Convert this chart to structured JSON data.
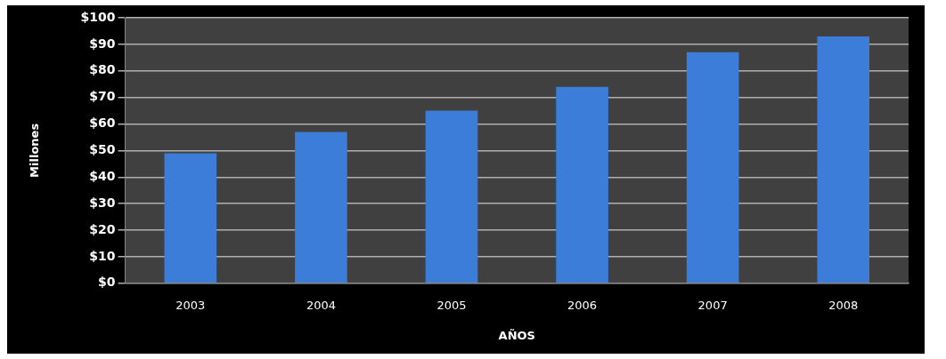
{
  "chart_data": {
    "type": "bar",
    "xlabel": "AÑOS",
    "ylabel": "Millones",
    "categories": [
      "2003",
      "2004",
      "2005",
      "2006",
      "2007",
      "2008"
    ],
    "values": [
      49,
      57,
      65,
      74,
      87,
      93
    ],
    "color": "#3b7dd8",
    "ylim": [
      0,
      100
    ],
    "yticks": [
      {
        "value": 0,
        "label": "$0"
      },
      {
        "value": 10,
        "label": "$10"
      },
      {
        "value": 20,
        "label": "$20"
      },
      {
        "value": 30,
        "label": "$30"
      },
      {
        "value": 40,
        "label": "$40"
      },
      {
        "value": 50,
        "label": "$50"
      },
      {
        "value": 60,
        "label": "$60"
      },
      {
        "value": 70,
        "label": "$70"
      },
      {
        "value": 80,
        "label": "$80"
      },
      {
        "value": 90,
        "label": "$90"
      },
      {
        "value": 100,
        "label": "$100"
      }
    ],
    "grid": "y",
    "legend": false
  }
}
